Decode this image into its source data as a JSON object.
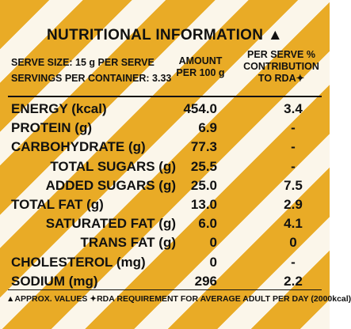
{
  "header": {
    "title": "NUTRITIONAL INFORMATION ▲",
    "serve_size": "SERVE SIZE: 15 g PER SERVE",
    "servings": "SERVINGS PER CONTAINER: 3.33"
  },
  "table": {
    "columns": [
      "AMOUNT PER 100 g",
      "PER SERVE % CONTRIBUTION TO RDA✦"
    ],
    "rows": [
      [
        "ENERGY (kcal)",
        "454.0",
        "3.4"
      ],
      [
        "PROTEIN (g)",
        "6.9",
        "-"
      ],
      [
        "CARBOHYDRATE (g)",
        "77.3",
        "-"
      ],
      [
        "TOTAL SUGARS (g)",
        "25.5",
        "-"
      ],
      [
        "ADDED SUGARS (g)",
        "25.0",
        "7.5"
      ],
      [
        "TOTAL FAT (g)",
        "13.0",
        "2.9"
      ],
      [
        "SATURATED FAT (g)",
        "6.0",
        "4.1"
      ],
      [
        "TRANS FAT (g)",
        "0",
        "0"
      ],
      [
        "CHOLESTEROL (mg)",
        "0",
        "-"
      ],
      [
        "SODIUM (mg)",
        "296",
        "2.2"
      ]
    ]
  },
  "footnote": "▲APPROX. VALUES ✦RDA REQUIREMENT FOR AVERAGE ADULT PER DAY (2000kcal)"
}
